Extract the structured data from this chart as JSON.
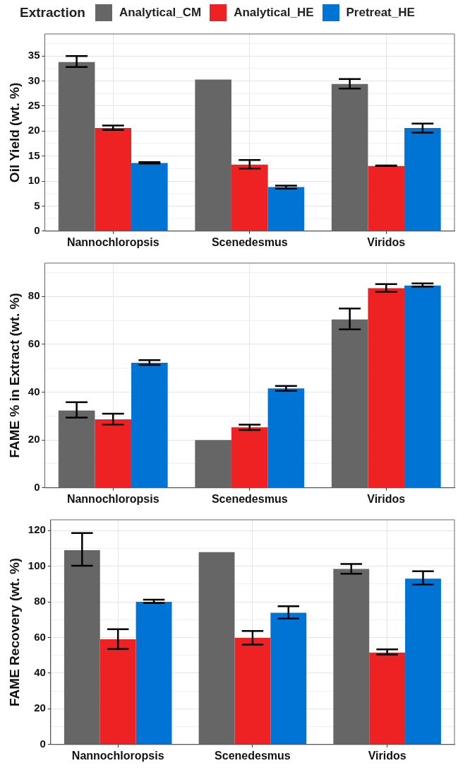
{
  "chart_data": [
    {
      "type": "bar",
      "legend": "top",
      "legend_title": "Extraction",
      "ylabel": "Oil Yield (wt. %)",
      "grid": true,
      "categories": [
        "Nannochloropsis",
        "Scenedesmus",
        "Viridos"
      ],
      "ylim": [
        0,
        39.4
      ],
      "yticks": [
        0,
        {
          "value": 2.5,
          "label": null
        },
        5,
        {
          "value": 7.5,
          "label": null
        },
        10,
        {
          "value": 12.5,
          "label": null
        },
        15,
        {
          "value": 17.5,
          "label": null
        },
        20,
        {
          "value": 22.5,
          "label": null
        },
        25,
        {
          "value": 27.5,
          "label": null
        },
        30,
        {
          "value": 32.5,
          "label": null
        },
        35,
        {
          "value": 37.5,
          "label": null
        }
      ],
      "series": [
        {
          "name": "Analytical_CM",
          "color": "#666666",
          "values": [
            33.8,
            30.3,
            29.4
          ],
          "errors": [
            [
              32.8,
              35.0
            ],
            null,
            [
              28.5,
              30.4
            ]
          ]
        },
        {
          "name": "Analytical_HE",
          "color": "#ee2222",
          "values": [
            20.6,
            13.3,
            13.0
          ],
          "errors": [
            [
              20.2,
              21.1
            ],
            [
              12.5,
              14.2
            ],
            [
              13.0,
              13.1
            ]
          ]
        },
        {
          "name": "Pretreat_HE",
          "color": "#0074d4",
          "values": [
            13.6,
            8.8,
            20.6
          ],
          "errors": [
            [
              13.5,
              13.8
            ],
            [
              8.5,
              9.1
            ],
            [
              19.7,
              21.5
            ]
          ]
        }
      ]
    },
    {
      "type": "bar",
      "ylabel": "FAME % in Extract (wt. %)",
      "grid": true,
      "categories": [
        "Nannochloropsis",
        "Scenedesmus",
        "Viridos"
      ],
      "ylim": [
        0,
        94
      ],
      "yticks": [
        0,
        {
          "value": 10,
          "label": null
        },
        20,
        {
          "value": 30,
          "label": null
        },
        40,
        {
          "value": 50,
          "label": null
        },
        60,
        {
          "value": 70,
          "label": null
        },
        80,
        {
          "value": 90,
          "label": null
        }
      ],
      "series": [
        {
          "color": "#666666",
          "values": [
            32.3,
            20.0,
            70.4
          ],
          "errors": [
            [
              29.4,
              35.8
            ],
            null,
            [
              66.3,
              75.0
            ]
          ]
        },
        {
          "color": "#ee2222",
          "values": [
            28.6,
            25.3,
            83.5
          ],
          "errors": [
            [
              26.5,
              31.0
            ],
            [
              24.2,
              26.4
            ],
            [
              82.0,
              85.2
            ]
          ]
        },
        {
          "color": "#0074d4",
          "values": [
            52.3,
            41.6,
            84.6
          ],
          "errors": [
            [
              51.4,
              53.4
            ],
            [
              40.6,
              42.6
            ],
            [
              84.2,
              85.5
            ]
          ]
        }
      ]
    },
    {
      "type": "bar",
      "ylabel": "FAME Recovery (wt. %)",
      "grid": true,
      "categories": [
        "Nannochloropsis",
        "Scenedesmus",
        "Viridos"
      ],
      "ylim": [
        0,
        126
      ],
      "yticks": [
        0,
        {
          "value": 10,
          "label": null
        },
        20,
        {
          "value": 30,
          "label": null
        },
        40,
        {
          "value": 50,
          "label": null
        },
        60,
        {
          "value": 70,
          "label": null
        },
        80,
        {
          "value": 90,
          "label": null
        },
        100,
        {
          "value": 110,
          "label": null
        },
        120
      ],
      "series": [
        {
          "color": "#666666",
          "values": [
            109,
            107.9,
            98.4
          ],
          "errors": [
            [
              100.2,
              118.6
            ],
            null,
            [
              95.8,
              101.2
            ]
          ]
        },
        {
          "color": "#ee2222",
          "values": [
            59,
            59.8,
            51.6
          ],
          "errors": [
            [
              53.5,
              64.6
            ],
            [
              56.0,
              63.7
            ],
            [
              50.5,
              53.3
            ]
          ]
        },
        {
          "color": "#0074d4",
          "values": [
            80,
            73.9,
            93
          ],
          "errors": [
            [
              79.3,
              81.2
            ],
            [
              70.7,
              77.5
            ],
            [
              89.7,
              97.2
            ]
          ]
        }
      ]
    }
  ]
}
